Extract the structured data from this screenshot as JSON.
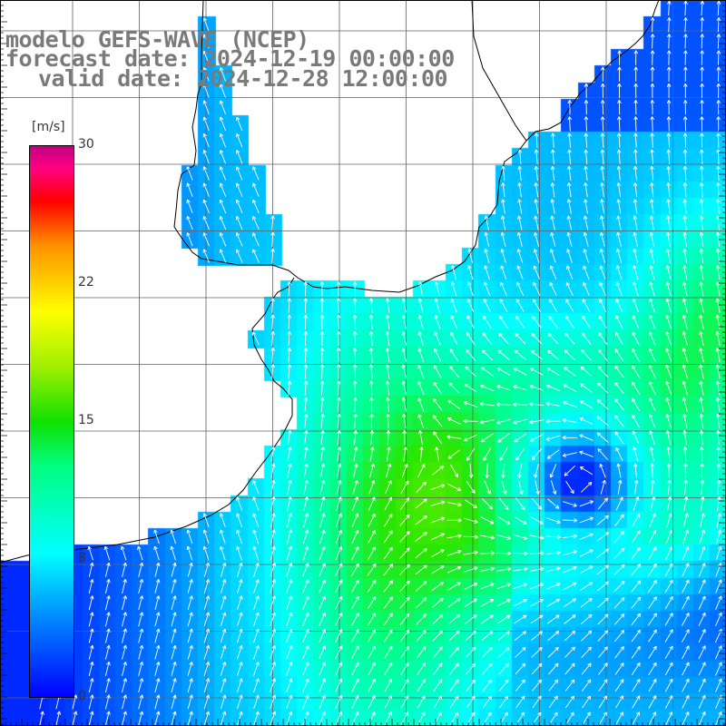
{
  "title": {
    "model": "modelo GEFS-WAVE (NCEP)",
    "forecast": "forecast date: 2024-12-19 00:00:00",
    "valid": "valid date: 2024-12-28 12:00:00"
  },
  "colorbar": {
    "unit": "[m/s]",
    "ticks": [
      "30",
      "22",
      "15",
      "8",
      "0"
    ],
    "colors": [
      "#0000ff",
      "#0090ff",
      "#00ffff",
      "#00ff80",
      "#10e000",
      "#a0f000",
      "#ffff00",
      "#ff9000",
      "#ff0000",
      "#ff0080",
      "#c00080"
    ]
  },
  "map": {
    "variable": "wind speed and direction",
    "land_color": "#ffffff",
    "arrow_color": "#ffffff",
    "grid_color": "#606060",
    "features": [
      "coastline",
      "lat-lon-grid",
      "wind-vectors"
    ]
  }
}
